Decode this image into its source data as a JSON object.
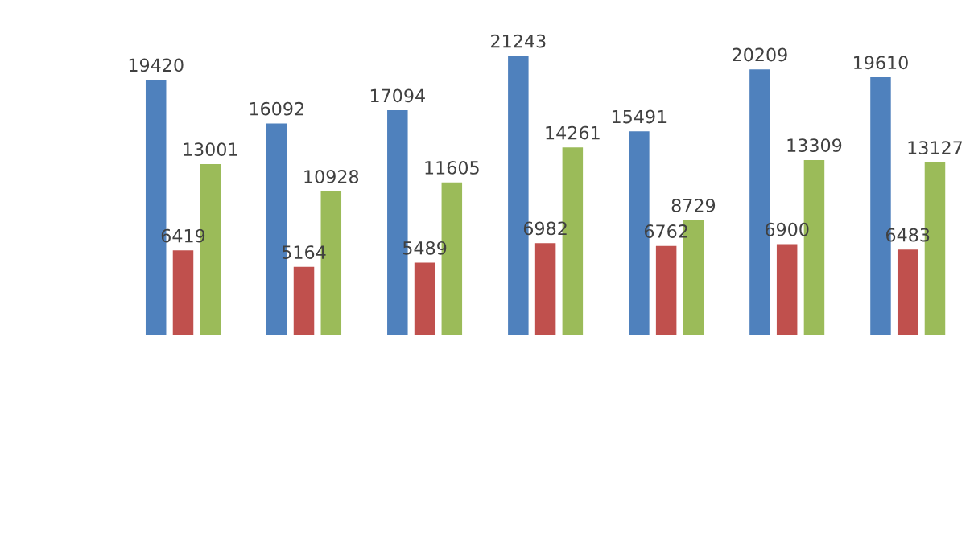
{
  "chart_data": {
    "type": "bar",
    "categories": [
      null,
      null,
      null,
      null,
      null,
      null,
      null
    ],
    "series": [
      {
        "color": "#4f81bd",
        "values": [
          19420,
          16092,
          17094,
          21243,
          15491,
          20209,
          19610
        ]
      },
      {
        "color": "#c0504d",
        "values": [
          6419,
          5164,
          5489,
          6982,
          6762,
          6900,
          6483
        ]
      },
      {
        "color": "#9bbb59",
        "values": [
          13001,
          10928,
          11605,
          14261,
          8729,
          13309,
          13127
        ]
      }
    ],
    "data_labels": true,
    "grid": false,
    "legend": false
  }
}
